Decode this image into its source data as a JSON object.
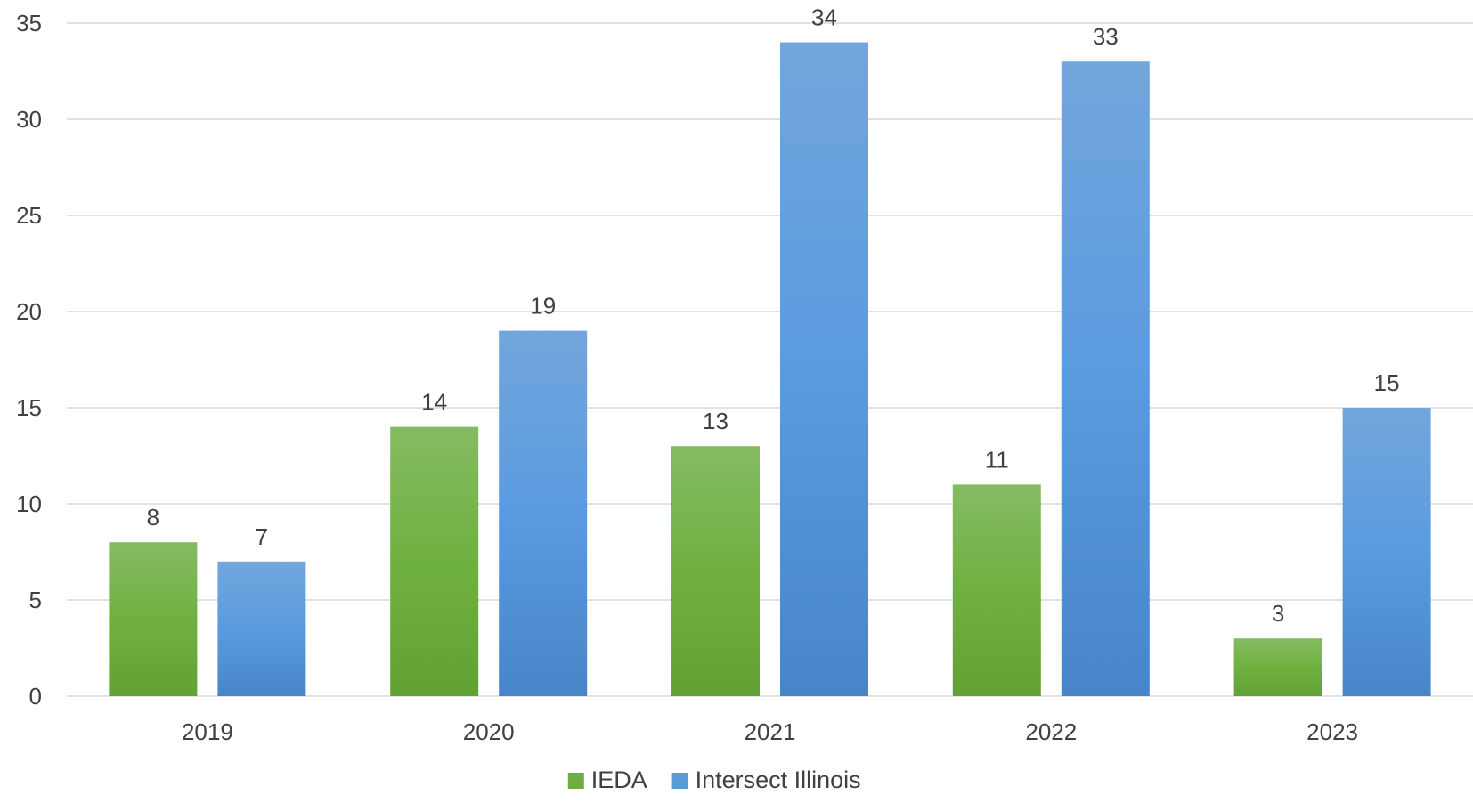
{
  "chart_data": {
    "type": "bar",
    "categories": [
      "2019",
      "2020",
      "2021",
      "2022",
      "2023"
    ],
    "series": [
      {
        "name": "IEDA",
        "values": [
          8,
          14,
          13,
          11,
          3
        ],
        "color": "#70ad47"
      },
      {
        "name": "Intersect Illinois",
        "values": [
          7,
          19,
          34,
          33,
          15
        ],
        "color": "#5b9bd5"
      }
    ],
    "y_ticks": [
      "0",
      "5",
      "10",
      "15",
      "20",
      "25",
      "30",
      "35"
    ],
    "ylim": [
      0,
      35
    ],
    "grid": true,
    "legend_position": "bottom"
  }
}
